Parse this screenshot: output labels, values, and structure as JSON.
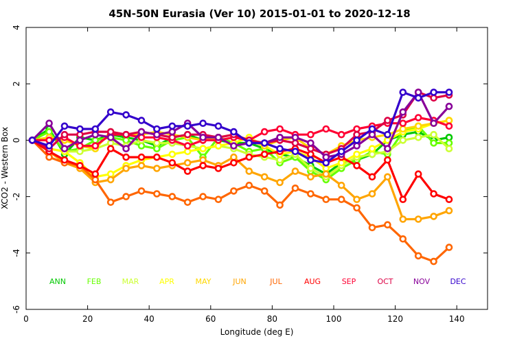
{
  "chart_data": {
    "type": "line",
    "title": "45N-50N Eurasia (Ver 10)   2015-01-01 to 2020-12-18",
    "xlabel": "Longitude (deg E)",
    "ylabel": "XCO2 - Western Box",
    "xlim": [
      0,
      150
    ],
    "ylim": [
      -6,
      4
    ],
    "xticks": [
      0,
      20,
      40,
      60,
      80,
      100,
      120,
      140
    ],
    "yticks": [
      -6,
      -4,
      -2,
      0,
      2,
      4
    ],
    "legend_placement": "bottom, inside plot",
    "x": [
      2,
      7.5,
      12.5,
      17.5,
      22.5,
      27.5,
      32.5,
      37.5,
      42.5,
      47.5,
      52.5,
      57.5,
      62.5,
      67.5,
      72.5,
      77.5,
      82.5,
      87.5,
      92.5,
      97.5,
      102.5,
      107.5,
      112.5,
      117.5,
      122.5,
      127.5,
      132.5,
      137.5
    ],
    "series": [
      {
        "name": "ANN",
        "color": "#00c800",
        "values": [
          0,
          0.4,
          -0.5,
          0.1,
          0.0,
          0.2,
          0.1,
          0.0,
          -0.2,
          0.1,
          0.2,
          0.0,
          0.0,
          -0.1,
          -0.1,
          -0.3,
          -0.5,
          -0.6,
          -0.9,
          -1.2,
          -0.8,
          -0.7,
          -0.5,
          0.0,
          0.2,
          0.3,
          0.0,
          0.1
        ]
      },
      {
        "name": "FEB",
        "color": "#66ff00",
        "values": [
          0,
          0.3,
          -0.4,
          -0.3,
          0.0,
          0.1,
          0.0,
          -0.2,
          -0.3,
          0.0,
          0.1,
          -0.6,
          0.1,
          -0.1,
          -0.4,
          -0.3,
          -0.8,
          -0.6,
          -1.1,
          -1.4,
          -1.0,
          -0.7,
          -0.4,
          -0.5,
          0.3,
          0.5,
          -0.1,
          -0.1
        ]
      },
      {
        "name": "MAR",
        "color": "#ccff33",
        "values": [
          0,
          -0.3,
          -0.4,
          -0.4,
          -0.3,
          -0.1,
          -0.2,
          0.0,
          -0.1,
          -0.1,
          -0.2,
          -0.3,
          -0.2,
          -0.3,
          -0.5,
          -0.6,
          -0.7,
          -0.5,
          -1.0,
          -1.3,
          -0.9,
          -0.6,
          -0.5,
          -0.4,
          0.0,
          0.1,
          0.2,
          -0.3
        ]
      },
      {
        "name": "APR",
        "color": "#ffff00",
        "values": [
          0,
          -0.3,
          -0.4,
          -0.8,
          -1.3,
          -1.2,
          -0.9,
          -0.7,
          -0.6,
          -0.5,
          -0.4,
          -0.3,
          -0.2,
          -0.1,
          0.1,
          -0.2,
          -0.5,
          -0.4,
          -0.6,
          -1.0,
          -0.8,
          -0.5,
          -0.3,
          0.0,
          0.3,
          0.4,
          0.6,
          0.7
        ]
      },
      {
        "name": "MAY",
        "color": "#ffd700",
        "values": [
          0,
          0.1,
          0.0,
          -0.2,
          -0.3,
          0.3,
          0.2,
          0.2,
          0.3,
          0.2,
          0.1,
          0.0,
          0.1,
          0.2,
          0.0,
          -0.2,
          0.0,
          0.1,
          -0.3,
          -0.5,
          -0.2,
          0.0,
          0.1,
          0.2,
          0.4,
          0.5,
          0.6,
          0.7
        ]
      },
      {
        "name": "JUN",
        "color": "#ffa500",
        "values": [
          0,
          -0.4,
          -0.8,
          -1.0,
          -1.5,
          -1.4,
          -1.0,
          -0.9,
          -1.0,
          -0.9,
          -0.8,
          -0.7,
          -0.9,
          -0.6,
          -1.1,
          -1.3,
          -1.5,
          -1.1,
          -1.3,
          -1.2,
          -1.6,
          -2.1,
          -1.9,
          -1.3,
          -2.8,
          -2.8,
          -2.7,
          -2.5
        ]
      },
      {
        "name": "JUL",
        "color": "#ff6600",
        "values": [
          0,
          -0.6,
          -0.8,
          -0.9,
          -1.4,
          -2.2,
          -2.0,
          -1.8,
          -1.9,
          -2.0,
          -2.2,
          -2.0,
          -2.1,
          -1.8,
          -1.6,
          -1.8,
          -2.3,
          -1.7,
          -1.9,
          -2.1,
          -2.1,
          -2.4,
          -3.1,
          -3.0,
          -3.5,
          -4.1,
          -4.3,
          -3.8
        ]
      },
      {
        "name": "AUG",
        "color": "#ff0000",
        "values": [
          0,
          -0.4,
          -0.7,
          -0.9,
          -1.2,
          -0.3,
          -0.6,
          -0.6,
          -0.6,
          -0.8,
          -1.1,
          -0.9,
          -1.0,
          -0.8,
          -0.6,
          -0.5,
          -0.4,
          -0.3,
          -0.5,
          -0.8,
          -0.6,
          -0.9,
          -1.3,
          -0.7,
          -2.1,
          -1.2,
          -1.9,
          -2.1
        ]
      },
      {
        "name": "SEP",
        "color": "#ff0033",
        "values": [
          0,
          0.0,
          0.1,
          -0.2,
          -0.2,
          0.2,
          0.2,
          0.1,
          0.1,
          0.0,
          -0.2,
          0.0,
          0.0,
          0.1,
          0.0,
          0.3,
          0.4,
          0.2,
          0.2,
          0.4,
          0.2,
          0.4,
          0.5,
          0.6,
          0.6,
          0.8,
          0.7,
          0.5
        ]
      },
      {
        "name": "OCT",
        "color": "#dd0044",
        "values": [
          0,
          -0.3,
          0.2,
          0.2,
          0.3,
          0.3,
          0.2,
          0.3,
          0.2,
          0.1,
          0.2,
          0.2,
          0.1,
          0.2,
          0.0,
          -0.1,
          0.0,
          -0.1,
          -0.3,
          -0.5,
          -0.3,
          0.2,
          0.3,
          0.7,
          0.9,
          1.7,
          1.5,
          1.6
        ]
      },
      {
        "name": "NOV",
        "color": "#880099",
        "values": [
          0,
          0.6,
          -0.3,
          0.0,
          0.2,
          0.1,
          -0.3,
          0.3,
          0.2,
          0.3,
          0.6,
          0.1,
          0.1,
          -0.2,
          -0.1,
          -0.1,
          0.1,
          0.1,
          -0.1,
          -0.6,
          -0.5,
          -0.2,
          0.2,
          -0.3,
          1.0,
          1.7,
          0.6,
          1.2
        ]
      },
      {
        "name": "DEC",
        "color": "#3300cc",
        "values": [
          0,
          -0.2,
          0.5,
          0.4,
          0.4,
          1.0,
          0.9,
          0.7,
          0.4,
          0.5,
          0.5,
          0.6,
          0.5,
          0.3,
          -0.1,
          -0.1,
          -0.3,
          -0.4,
          -0.7,
          -0.8,
          -0.4,
          0.0,
          0.4,
          0.2,
          1.7,
          1.5,
          1.7,
          1.7
        ]
      }
    ]
  }
}
